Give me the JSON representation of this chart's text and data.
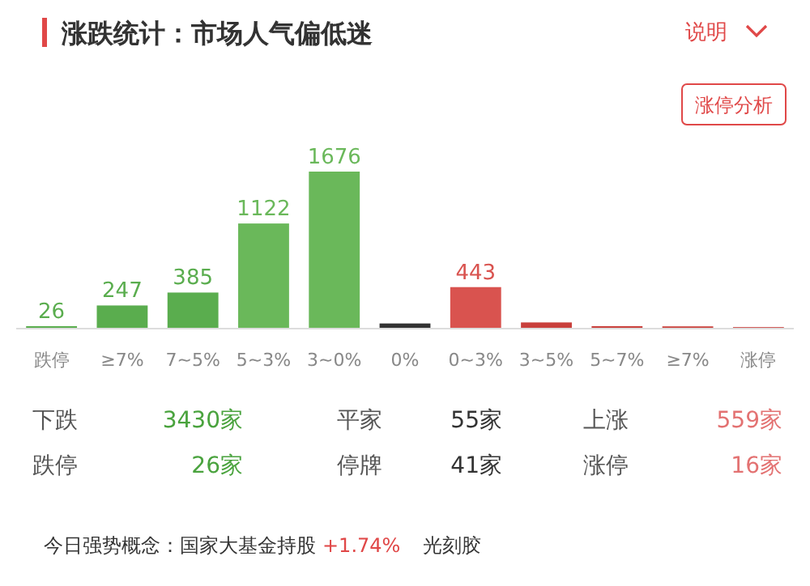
{
  "chart_data": {
    "type": "bar",
    "title": "涨跌统计：市场人气偏低迷",
    "categories": [
      "跌停",
      "≥7%",
      "7~5%",
      "5~3%",
      "3~0%",
      "0%",
      "0~3%",
      "3~5%",
      "5~7%",
      "≥7%",
      "涨停"
    ],
    "values": [
      26,
      247,
      385,
      1122,
      1676,
      55,
      443,
      66,
      26,
      24,
      16
    ],
    "colors": [
      "#5aad4e",
      "#5aad4e",
      "#5aad4e",
      "#6ab85a",
      "#6ab85a",
      "#333333",
      "#d9534f",
      "#c9403c",
      "#c9403c",
      "#c9403c",
      "#c9403c"
    ],
    "value_labels": [
      "26",
      "247",
      "385",
      "1122",
      "1676",
      null,
      "443",
      null,
      null,
      null,
      null
    ],
    "annotations": [
      "说明",
      "涨停分析",
      "下跌",
      "3430家",
      "平家",
      "55家",
      "上涨",
      "559家",
      "跌停",
      "26家",
      "停牌",
      "41家",
      "涨停",
      "16家",
      "今日强势概念：",
      "国家大基金持股",
      "+1.74%",
      "光刻胶"
    ]
  }
}
